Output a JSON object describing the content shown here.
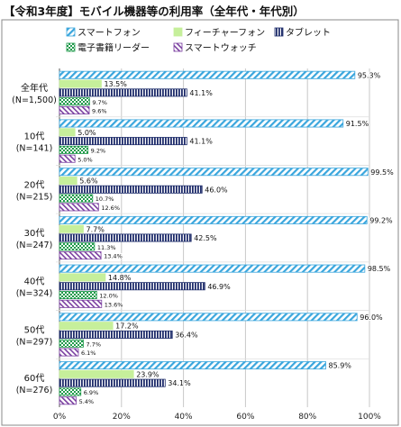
{
  "chart_data": {
    "type": "bar",
    "orientation": "horizontal",
    "title": "【令和3年度】モバイル機器等の利用率（全年代・年代別）",
    "categories": [
      [
        "全年代",
        "(N=1,500)"
      ],
      [
        "10代",
        "(N=141)"
      ],
      [
        "20代",
        "(N=215)"
      ],
      [
        "30代",
        "(N=247)"
      ],
      [
        "40代",
        "(N=324)"
      ],
      [
        "50代",
        "(N=297)"
      ],
      [
        "60代",
        "(N=276)"
      ]
    ],
    "series": [
      {
        "name": "スマートフォン",
        "values": [
          95.3,
          91.5,
          99.5,
          99.2,
          98.5,
          96.0,
          85.9
        ],
        "color": "#3aa6dd",
        "pattern": "diag-lines"
      },
      {
        "name": "フィーチャーフォン",
        "values": [
          13.5,
          5.0,
          5.6,
          7.7,
          14.8,
          17.2,
          23.9
        ],
        "color": "#c6ef9b",
        "pattern": "solid"
      },
      {
        "name": "タブレット",
        "values": [
          41.1,
          41.1,
          46.0,
          42.5,
          46.9,
          36.4,
          34.1
        ],
        "color": "#1f2d6b",
        "pattern": "vertical-lines"
      },
      {
        "name": "電子書籍リーダー",
        "values": [
          9.7,
          9.2,
          10.7,
          11.3,
          12.0,
          7.7,
          6.9
        ],
        "color": "#1f9a4a",
        "pattern": "checker"
      },
      {
        "name": "スマートウォッチ",
        "values": [
          9.6,
          5.0,
          12.6,
          13.4,
          13.6,
          6.1,
          5.4
        ],
        "color": "#7a3fa0",
        "pattern": "diag-lines-reverse"
      }
    ],
    "value_labels": [
      [
        "95.3%",
        "13.5%",
        "41.1%",
        "9.7%",
        "9.6%"
      ],
      [
        "91.5%",
        "5.0%",
        "41.1%",
        "9.2%",
        "5.0%"
      ],
      [
        "99.5%",
        "5.6%",
        "46.0%",
        "10.7%",
        "12.6%"
      ],
      [
        "99.2%",
        "7.7%",
        "42.5%",
        "11.3%",
        "13.4%"
      ],
      [
        "98.5%",
        "14.8%",
        "46.9%",
        "12.0%",
        "13.6%"
      ],
      [
        "96.0%",
        "17.2%",
        "36.4%",
        "7.7%",
        "6.1%"
      ],
      [
        "85.9%",
        "23.9%",
        "34.1%",
        "6.9%",
        "5.4%"
      ]
    ],
    "x_ticks": [
      "0%",
      "20%",
      "40%",
      "60%",
      "80%",
      "100%"
    ],
    "xlim": [
      0,
      100
    ],
    "legend_position": "top",
    "grid": true
  }
}
